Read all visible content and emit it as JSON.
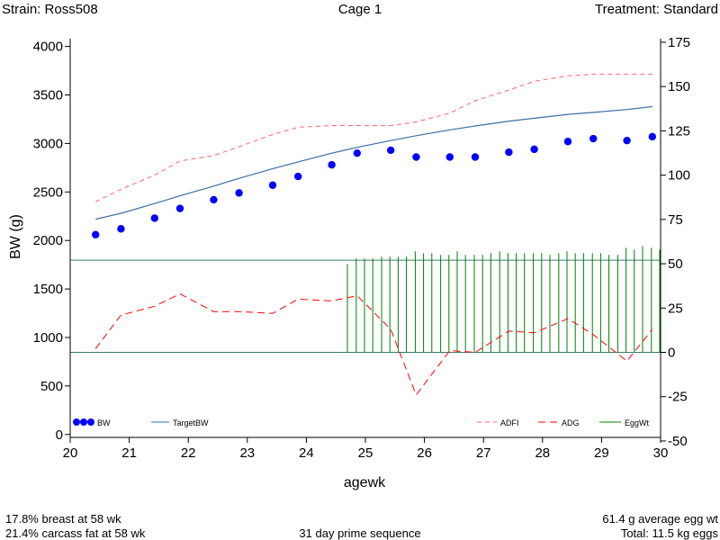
{
  "header": {
    "strain": "Strain: Ross508",
    "cage": "Cage 1",
    "treatment": "Treatment: Standard"
  },
  "footer": {
    "breast": "17.8%  breast at 58 wk",
    "carcass_fat": "21.4%  carcass fat at 58 wk",
    "prime": "31 day prime sequence",
    "egg_avg": "61.4 g average egg wt",
    "egg_total": "Total: 11.5 kg eggs"
  },
  "chart_data": {
    "type": "line",
    "xlabel": "agewk",
    "ylabel": "BW (g)",
    "y2label": "",
    "xlim": [
      20,
      30
    ],
    "ylim": [
      -30,
      4080
    ],
    "y2lim": [
      -48,
      177
    ],
    "x_ticks": [
      20,
      21,
      22,
      23,
      24,
      25,
      26,
      27,
      28,
      29,
      30
    ],
    "y_ticks": [
      0,
      500,
      1000,
      1500,
      2000,
      2500,
      3000,
      3500,
      4000
    ],
    "y2_ticks": [
      -50,
      -25,
      0,
      25,
      50,
      75,
      100,
      125,
      150,
      175
    ],
    "y2_reference_lines": [
      0,
      52
    ],
    "series": [
      {
        "name": "BW",
        "axis": "left",
        "kind": "scatter",
        "color": "#0000ff",
        "x": [
          20.43,
          20.86,
          21.43,
          21.86,
          22.43,
          22.86,
          23.43,
          23.86,
          24.43,
          24.86,
          25.43,
          25.86,
          26.43,
          26.86,
          27.43,
          27.86,
          28.43,
          28.86,
          29.43,
          29.86
        ],
        "y": [
          2060,
          2120,
          2230,
          2330,
          2420,
          2490,
          2570,
          2660,
          2780,
          2900,
          2930,
          2860,
          2860,
          2860,
          2910,
          2940,
          3020,
          3050,
          3030,
          3070
        ]
      },
      {
        "name": "TargetBW",
        "axis": "left",
        "kind": "line",
        "color": "#3a6ea5",
        "x": [
          20.43,
          20.86,
          21.43,
          21.86,
          22.43,
          22.86,
          23.43,
          23.86,
          24.43,
          24.86,
          25.43,
          25.86,
          26.43,
          26.86,
          27.43,
          27.86,
          28.43,
          28.86,
          29.43,
          29.86
        ],
        "y": [
          2220,
          2280,
          2380,
          2460,
          2560,
          2640,
          2740,
          2810,
          2900,
          2960,
          3030,
          3080,
          3140,
          3180,
          3230,
          3260,
          3300,
          3320,
          3350,
          3380
        ]
      },
      {
        "name": "ADFI",
        "axis": "right",
        "kind": "line",
        "dash": "5,4",
        "color": "#ff6666",
        "x": [
          20.43,
          20.86,
          21.43,
          21.86,
          22.43,
          22.86,
          23.43,
          23.86,
          24.43,
          24.86,
          25.43,
          25.86,
          26.43,
          26.86,
          27.43,
          27.86,
          28.43,
          28.86,
          29.43,
          29.86
        ],
        "y": [
          85,
          92,
          100,
          108,
          111,
          116,
          123,
          127,
          128,
          128,
          128,
          130,
          135,
          142,
          148,
          153,
          156,
          157,
          157,
          157
        ]
      },
      {
        "name": "ADG",
        "axis": "right",
        "kind": "line",
        "dash": "8,5",
        "color": "#ff0000",
        "x": [
          20.43,
          20.86,
          21.43,
          21.86,
          22.43,
          22.86,
          23.43,
          23.86,
          24.43,
          24.86,
          25.43,
          25.86,
          26.43,
          26.86,
          27.43,
          27.86,
          28.43,
          28.86,
          29.43,
          29.86
        ],
        "y": [
          2,
          21,
          26,
          33,
          23,
          23,
          22,
          30,
          29,
          32,
          13,
          -24,
          1,
          0,
          12,
          11,
          19,
          10,
          -5,
          13
        ]
      },
      {
        "name": "EggWt",
        "axis": "right",
        "kind": "needle",
        "color": "#008000",
        "x": [
          24.71,
          24.86,
          25.0,
          25.14,
          25.29,
          25.43,
          25.57,
          25.71,
          25.86,
          26.0,
          26.14,
          26.29,
          26.43,
          26.57,
          26.71,
          26.86,
          27.0,
          27.14,
          27.29,
          27.43,
          27.57,
          27.71,
          27.86,
          28.0,
          28.14,
          28.29,
          28.43,
          28.57,
          28.71,
          28.86,
          29.0,
          29.14,
          29.29,
          29.43,
          29.57,
          29.71,
          29.86,
          30.0
        ],
        "y": [
          50,
          53,
          53,
          53,
          54,
          54,
          54,
          54,
          57,
          56,
          56,
          55,
          55,
          57,
          55,
          55,
          55,
          56,
          57,
          56,
          56,
          56,
          56,
          56,
          55,
          56,
          57,
          56,
          56,
          56,
          56,
          55,
          55,
          59,
          58,
          60,
          59,
          58
        ]
      }
    ],
    "legend": {
      "placement": "bottom"
    }
  }
}
